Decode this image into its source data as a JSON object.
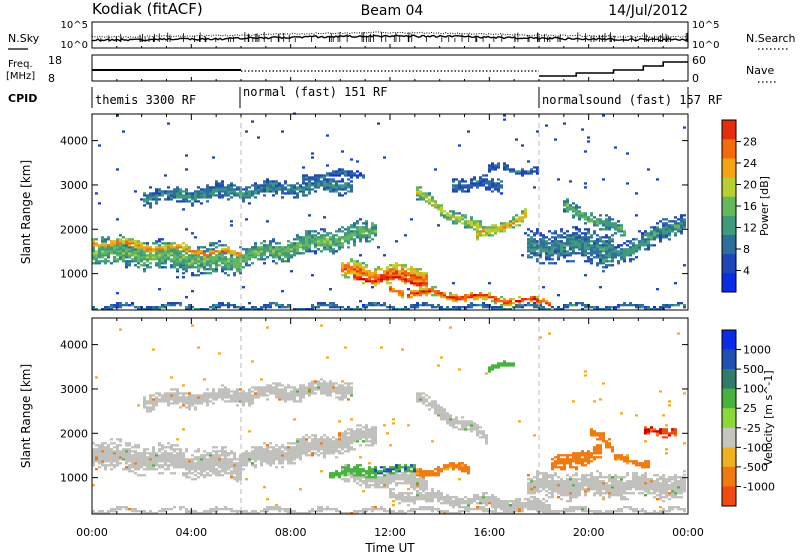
{
  "header": {
    "station": "Kodiak (fitACF)",
    "beam": "Beam 04",
    "date": "14/Jul/2012"
  },
  "top_panels": {
    "nsky_label": "N.Sky",
    "nsearch_label": "N.Search",
    "noise_ticks": [
      "10^5",
      "10^0"
    ],
    "freq_label_1": "Freq.",
    "freq_label_2": "[MHz]",
    "freq_ticks": [
      "18",
      "8"
    ],
    "nave_label": "Nave",
    "nave_ticks": [
      "60",
      "0"
    ],
    "cpid_label": "CPID",
    "modes": [
      "themis 3300 RF",
      "normal (fast) 151 RF",
      "normalsound (fast) 157 RF"
    ]
  },
  "colors": {
    "power_scale": [
      "#0a2be8",
      "#1f45b8",
      "#2d6e9a",
      "#3d9a7a",
      "#63b85a",
      "#b7cf32",
      "#f5a310",
      "#f56a0a",
      "#e62d0a",
      "#d00000"
    ],
    "velocity_scale": [
      "#0a2be8",
      "#1f4fb0",
      "#2f7c6a",
      "#47b23d",
      "#8ad83a",
      "#c7c5c0",
      "#f0b020",
      "#f07a10",
      "#f04a10",
      "#d00000"
    ],
    "ground_scatter": "#c0c0bc"
  },
  "chart_data": [
    {
      "type": "heatmap",
      "panel": "power",
      "xlabel": "Time UT",
      "ylabel": "Slant Range [km]",
      "xlim_hours": [
        0,
        24
      ],
      "ylim_km": [
        180,
        4600
      ],
      "x_ticks": [
        "00:00",
        "04:00",
        "08:00",
        "12:00",
        "16:00",
        "20:00",
        "00:00"
      ],
      "y_ticks": [
        1000,
        2000,
        3000,
        4000
      ],
      "colorbar_label": "Power [dB]",
      "colorbar_ticks": [
        4,
        8,
        12,
        16,
        20,
        24,
        28
      ],
      "mode_change_hours": [
        6,
        18
      ],
      "bands": [
        {
          "t0": 0.0,
          "t1": 6.0,
          "r0": 1500,
          "r1": 1250,
          "w": 700,
          "p": 14
        },
        {
          "t0": 0.0,
          "t1": 6.0,
          "r0": 1700,
          "r1": 1400,
          "w": 250,
          "p": 22
        },
        {
          "t0": 5.5,
          "t1": 11.5,
          "r0": 1300,
          "r1": 1950,
          "w": 250,
          "p": 26
        },
        {
          "t0": 5.5,
          "t1": 11.5,
          "r0": 1300,
          "r1": 1950,
          "w": 550,
          "p": 14
        },
        {
          "t0": 2.0,
          "t1": 10.5,
          "r0": 2700,
          "r1": 3000,
          "w": 400,
          "p": 10
        },
        {
          "t0": 8.5,
          "t1": 11.0,
          "r0": 3150,
          "r1": 3250,
          "w": 180,
          "p": 8
        },
        {
          "t0": 10.0,
          "t1": 13.5,
          "r0": 1050,
          "r1": 900,
          "w": 450,
          "p": 24
        },
        {
          "t0": 10.5,
          "t1": 13.5,
          "r0": 900,
          "r1": 800,
          "w": 200,
          "p": 29
        },
        {
          "t0": 12.0,
          "t1": 18.5,
          "r0": 600,
          "r1": 320,
          "w": 200,
          "p": 27
        },
        {
          "t0": 13.0,
          "t1": 16.0,
          "r0": 2800,
          "r1": 1850,
          "w": 300,
          "p": 18
        },
        {
          "t0": 15.5,
          "t1": 17.5,
          "r0": 1800,
          "r1": 2300,
          "w": 300,
          "p": 20
        },
        {
          "t0": 14.5,
          "t1": 16.5,
          "r0": 3000,
          "r1": 2950,
          "w": 350,
          "p": 8
        },
        {
          "t0": 16.0,
          "t1": 18.0,
          "r0": 3350,
          "r1": 3300,
          "w": 200,
          "p": 8
        },
        {
          "t0": 17.5,
          "t1": 21.0,
          "r0": 1600,
          "r1": 1600,
          "w": 800,
          "p": 10
        },
        {
          "t0": 19.0,
          "t1": 21.5,
          "r0": 2500,
          "r1": 1900,
          "w": 350,
          "p": 13
        },
        {
          "t0": 20.5,
          "t1": 24.0,
          "r0": 1200,
          "r1": 2200,
          "w": 500,
          "p": 11
        },
        {
          "t0": 0.0,
          "t1": 24.0,
          "r0": 230,
          "r1": 230,
          "w": 120,
          "p": 9
        }
      ]
    },
    {
      "type": "heatmap",
      "panel": "velocity",
      "xlabel": "Time UT",
      "ylabel": "Slant Range [km]",
      "xlim_hours": [
        0,
        24
      ],
      "ylim_km": [
        180,
        4600
      ],
      "x_ticks": [
        "00:00",
        "04:00",
        "08:00",
        "12:00",
        "16:00",
        "20:00",
        "00:00"
      ],
      "y_ticks": [
        1000,
        2000,
        3000,
        4000
      ],
      "colorbar_label": "Velocity [m s^-1]",
      "colorbar_ticks": [
        "1000",
        "500",
        "100",
        "25",
        "-25",
        "-100",
        "-500",
        "-1000"
      ],
      "ground_bands": [
        {
          "t0": 0.0,
          "t1": 6.0,
          "r0": 1500,
          "r1": 1250,
          "w": 700
        },
        {
          "t0": 5.5,
          "t1": 11.5,
          "r0": 1300,
          "r1": 1950,
          "w": 550
        },
        {
          "t0": 2.0,
          "t1": 10.5,
          "r0": 2700,
          "r1": 3000,
          "w": 400
        },
        {
          "t0": 10.0,
          "t1": 13.5,
          "r0": 1050,
          "r1": 900,
          "w": 450
        },
        {
          "t0": 12.0,
          "t1": 18.5,
          "r0": 600,
          "r1": 320,
          "w": 300
        },
        {
          "t0": 13.0,
          "t1": 16.0,
          "r0": 2800,
          "r1": 1850,
          "w": 300
        },
        {
          "t0": 17.5,
          "t1": 24.0,
          "r0": 800,
          "r1": 800,
          "w": 600
        },
        {
          "t0": 0.0,
          "t1": 24.0,
          "r0": 230,
          "r1": 230,
          "w": 120
        }
      ],
      "velocity_patches": [
        {
          "t0": 9.5,
          "t1": 11.5,
          "r0": 1050,
          "r1": 1150,
          "w": 250,
          "v": 100
        },
        {
          "t0": 11.3,
          "t1": 13.0,
          "r0": 1200,
          "r1": 1150,
          "w": 200,
          "v": 300
        },
        {
          "t0": 13.0,
          "t1": 15.2,
          "r0": 1100,
          "r1": 1200,
          "w": 200,
          "v": -150
        },
        {
          "t0": 16.0,
          "t1": 17.0,
          "r0": 3450,
          "r1": 3500,
          "w": 150,
          "v": 150
        },
        {
          "t0": 18.5,
          "t1": 20.5,
          "r0": 1200,
          "r1": 1600,
          "w": 400,
          "v": -200
        },
        {
          "t0": 20.0,
          "t1": 21.0,
          "r0": 2000,
          "r1": 1700,
          "w": 300,
          "v": -300
        },
        {
          "t0": 22.2,
          "t1": 23.5,
          "r0": 2000,
          "r1": 2050,
          "w": 200,
          "v": -700
        },
        {
          "t0": 21.0,
          "t1": 22.5,
          "r0": 1400,
          "r1": 1300,
          "w": 200,
          "v": -150
        }
      ]
    }
  ]
}
